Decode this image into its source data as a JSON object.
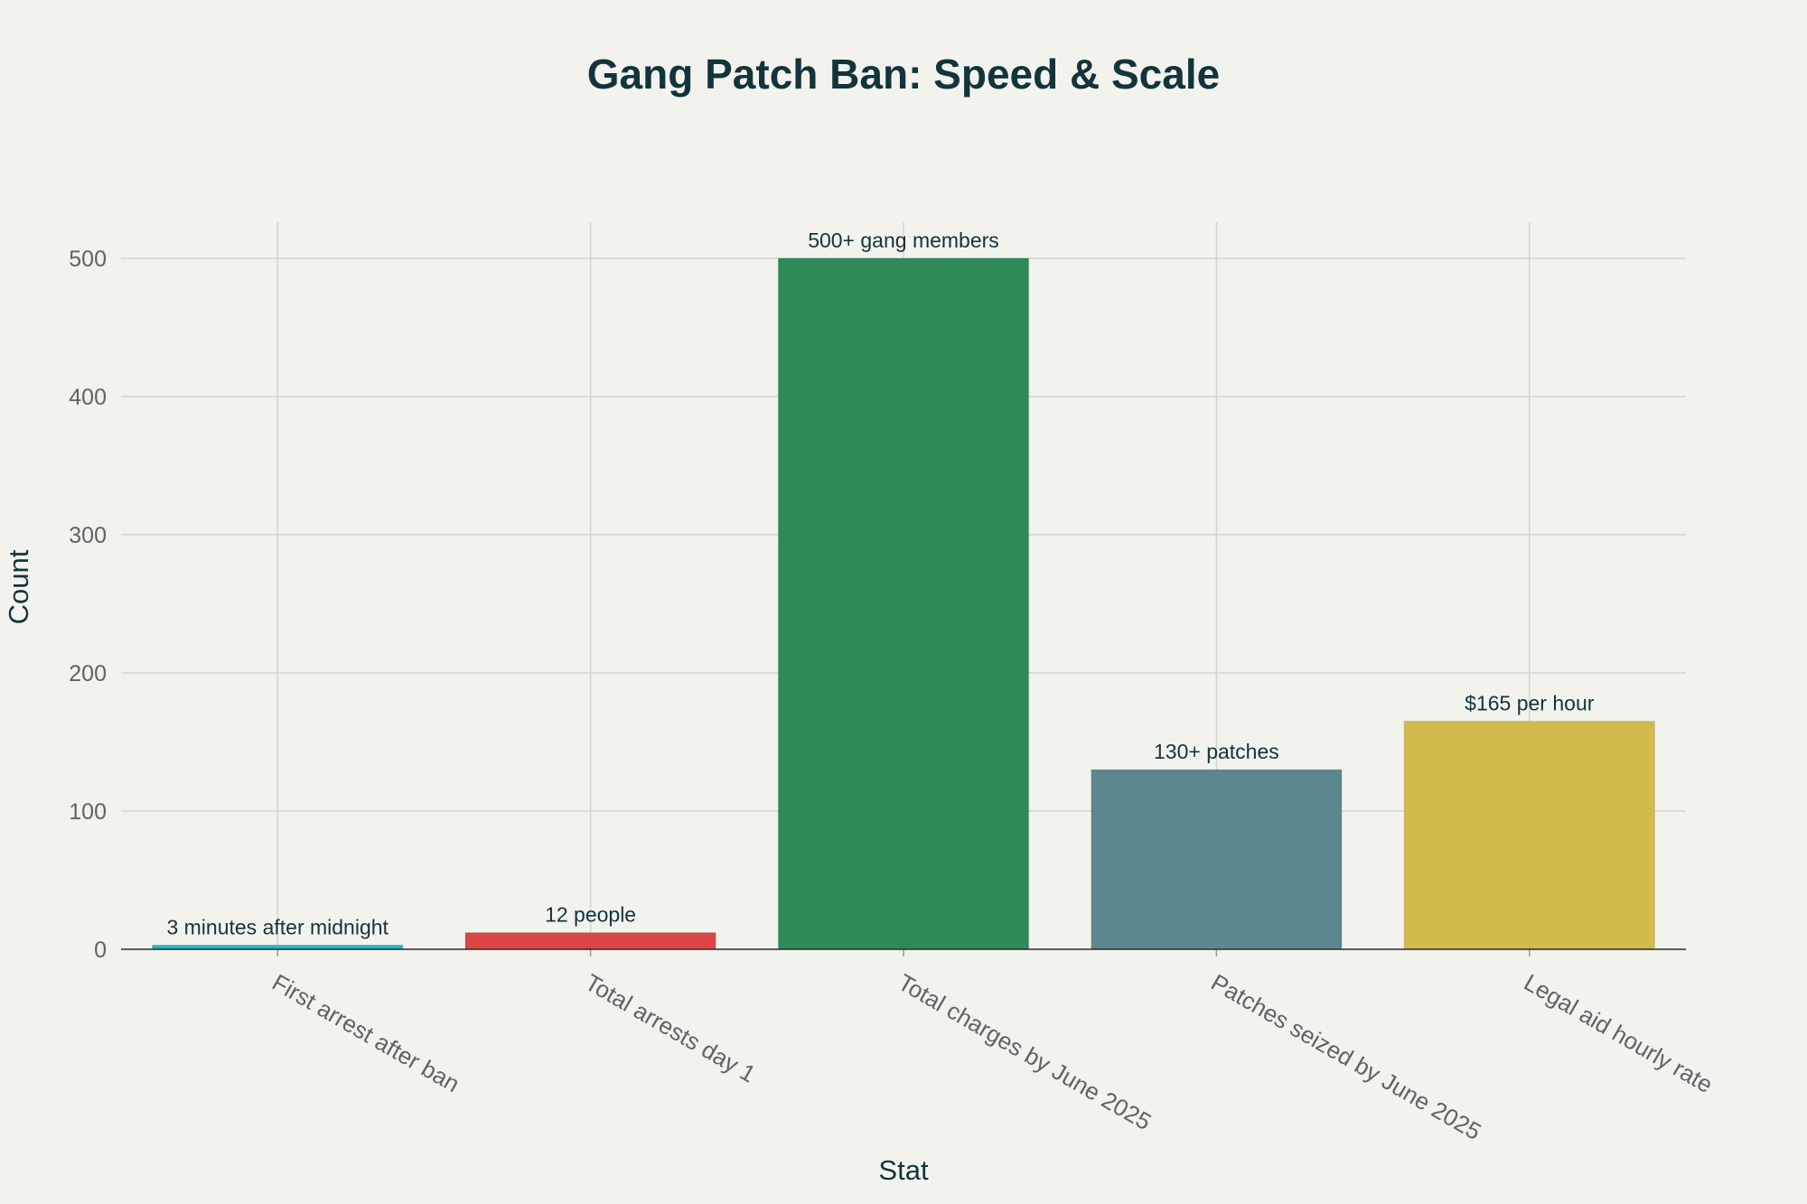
{
  "chart_data": {
    "type": "bar",
    "title": "Gang Patch Ban: Speed & Scale",
    "xlabel": "Stat",
    "ylabel": "Count",
    "categories": [
      "First arrest after ban",
      "Total arrests day 1",
      "Total charges by June 2025",
      "Patches seized by June 2025",
      "Legal aid hourly rate"
    ],
    "values": [
      3,
      12,
      500,
      130,
      165
    ],
    "data_labels": [
      "3 minutes after midnight",
      "12 people",
      "500+ gang members",
      "130+ patches",
      "$165 per hour"
    ],
    "colors": [
      "#1fb8cd",
      "#db4545",
      "#2e8b57",
      "#5d878f",
      "#d2ba4c"
    ],
    "ylim": [
      0,
      525
    ],
    "yticks": [
      0,
      100,
      200,
      300,
      400,
      500
    ],
    "grid": true,
    "legend": "none"
  }
}
